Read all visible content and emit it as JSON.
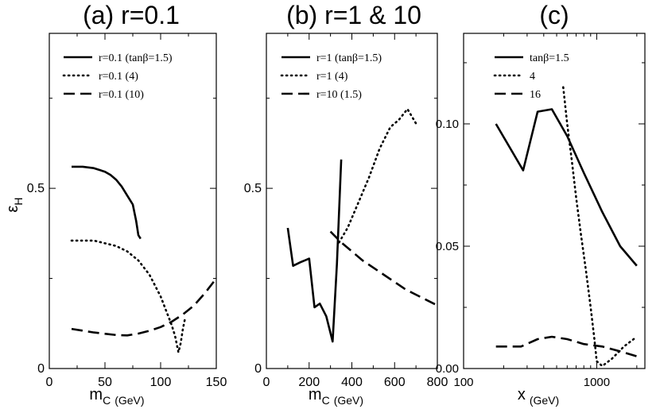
{
  "chart_data": [
    {
      "id": "a",
      "type": "line",
      "title": "(a) r=0.1",
      "xlabel_main": "m",
      "xlabel_sub": "C",
      "xlabel_unit": "(GeV)",
      "ylabel_main": "ε",
      "ylabel_sub": "H",
      "xlim": [
        0,
        150
      ],
      "ylim": [
        0,
        0.93
      ],
      "xticks": [
        0,
        50,
        100,
        150
      ],
      "xtick_labels": [
        "0",
        "50",
        "100",
        "150"
      ],
      "yticks": [
        0,
        0.5
      ],
      "ytick_labels": [
        "0",
        "0.5"
      ],
      "series": [
        {
          "name": "r=0.1 (tanβ=1.5)",
          "style": "solid",
          "x": [
            20,
            30,
            40,
            50,
            55,
            60,
            65,
            70,
            75,
            78,
            80,
            82
          ],
          "y": [
            0.56,
            0.56,
            0.556,
            0.546,
            0.537,
            0.524,
            0.505,
            0.48,
            0.455,
            0.41,
            0.37,
            0.36
          ]
        },
        {
          "name": "r=0.1 (4)",
          "style": "dotted",
          "x": [
            20,
            40,
            60,
            70,
            80,
            90,
            100,
            105,
            110,
            113,
            116,
            118,
            120,
            122
          ],
          "y": [
            0.355,
            0.355,
            0.34,
            0.325,
            0.3,
            0.26,
            0.2,
            0.16,
            0.12,
            0.09,
            0.045,
            0.07,
            0.11,
            0.14
          ]
        },
        {
          "name": "r=0.1 (10)",
          "style": "dashed",
          "x": [
            20,
            40,
            60,
            70,
            80,
            90,
            100,
            110,
            120,
            130,
            140,
            150
          ],
          "y": [
            0.11,
            0.1,
            0.093,
            0.092,
            0.097,
            0.105,
            0.115,
            0.13,
            0.15,
            0.175,
            0.21,
            0.25
          ]
        }
      ]
    },
    {
      "id": "b",
      "type": "line",
      "title": "(b) r=1 & 10",
      "xlabel_main": "m",
      "xlabel_sub": "C",
      "xlabel_unit": "(GeV)",
      "xlim": [
        0,
        800
      ],
      "ylim": [
        0,
        0.93
      ],
      "xticks": [
        0,
        200,
        400,
        600,
        800
      ],
      "xtick_labels": [
        "0",
        "200",
        "400",
        "600",
        "800"
      ],
      "yticks": [
        0,
        0.5
      ],
      "ytick_labels": [
        "0",
        "0.5"
      ],
      "series": [
        {
          "name": "r=1 (tanβ=1.5)",
          "style": "solid",
          "x": [
            100,
            125,
            160,
            200,
            225,
            250,
            280,
            310,
            330,
            350
          ],
          "y": [
            0.39,
            0.285,
            0.295,
            0.305,
            0.17,
            0.18,
            0.145,
            0.075,
            0.29,
            0.58
          ]
        },
        {
          "name": "r=1 (4)",
          "style": "dotted",
          "x": [
            340,
            380,
            430,
            480,
            530,
            580,
            620,
            660,
            680,
            700
          ],
          "y": [
            0.35,
            0.39,
            0.46,
            0.53,
            0.61,
            0.67,
            0.69,
            0.72,
            0.7,
            0.68
          ]
        },
        {
          "name": "r=10 (1.5)",
          "style": "dashed",
          "x": [
            300,
            350,
            400,
            450,
            500,
            550,
            600,
            650,
            700,
            750,
            800
          ],
          "y": [
            0.38,
            0.35,
            0.325,
            0.3,
            0.28,
            0.26,
            0.24,
            0.22,
            0.205,
            0.19,
            0.175
          ]
        }
      ]
    },
    {
      "id": "c",
      "type": "line",
      "title": "(c)",
      "xlabel_main": "x",
      "xlabel_unit": "(GeV)",
      "xscale": "log",
      "xlim": [
        100,
        2300
      ],
      "ylim": [
        0,
        0.137
      ],
      "xticks": [
        100,
        1000
      ],
      "xtick_labels": [
        "100",
        "1000"
      ],
      "yticks": [
        0,
        0.05,
        0.1
      ],
      "ytick_labels": [
        "0.00",
        "0.05",
        "0.10"
      ],
      "series": [
        {
          "name": "tanβ=1.5",
          "style": "solid",
          "x": [
            175,
            280,
            360,
            460,
            600,
            800,
            1100,
            1500,
            2000
          ],
          "y": [
            0.1,
            0.081,
            0.105,
            0.106,
            0.095,
            0.08,
            0.064,
            0.05,
            0.042
          ]
        },
        {
          "name": "4",
          "style": "dotted",
          "x": [
            560,
            600,
            650,
            700,
            760,
            830,
            900,
            960,
            1000,
            1100,
            1300,
            1600,
            2000
          ],
          "y": [
            0.115,
            0.1,
            0.085,
            0.07,
            0.055,
            0.04,
            0.025,
            0.012,
            0.003,
            0.001,
            0.004,
            0.009,
            0.013
          ]
        },
        {
          "name": "16",
          "style": "dashed",
          "x": [
            175,
            270,
            360,
            460,
            600,
            800,
            1100,
            1500,
            2000
          ],
          "y": [
            0.009,
            0.009,
            0.012,
            0.013,
            0.012,
            0.01,
            0.009,
            0.007,
            0.005
          ]
        }
      ]
    }
  ]
}
